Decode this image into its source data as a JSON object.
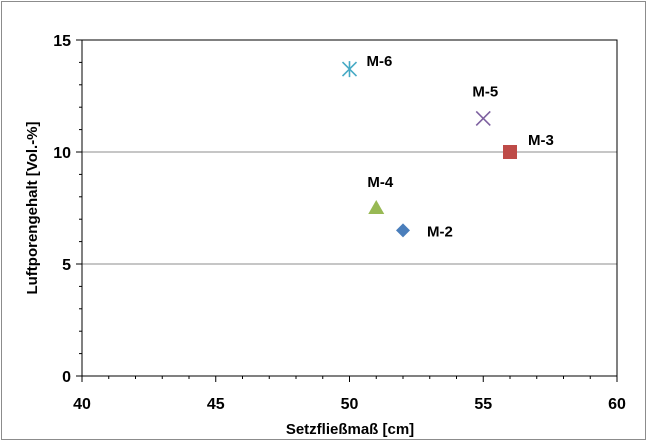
{
  "chart_data": {
    "type": "scatter",
    "xlabel": "Setzfließmaß [cm]",
    "ylabel": "Luftporengehalt [Vol.-%]",
    "xlim": [
      40,
      60
    ],
    "ylim": [
      0,
      15
    ],
    "xticks": [
      40,
      45,
      50,
      55,
      60
    ],
    "yticks": [
      0,
      5,
      10,
      15
    ],
    "grid": "horizontal major gridlines",
    "legend": "none",
    "points": [
      {
        "label": "M-2",
        "x": 52,
        "y": 6.5,
        "marker": "diamond",
        "color": "#4a7ebb"
      },
      {
        "label": "M-3",
        "x": 56,
        "y": 10,
        "marker": "square",
        "color": "#be4b48"
      },
      {
        "label": "M-4",
        "x": 51,
        "y": 7.5,
        "marker": "triangle",
        "color": "#98b954"
      },
      {
        "label": "M-5",
        "x": 55,
        "y": 11.5,
        "marker": "x",
        "color": "#7d60a0"
      },
      {
        "label": "M-6",
        "x": 50,
        "y": 13.7,
        "marker": "asterisk",
        "color": "#46aac5"
      }
    ]
  }
}
